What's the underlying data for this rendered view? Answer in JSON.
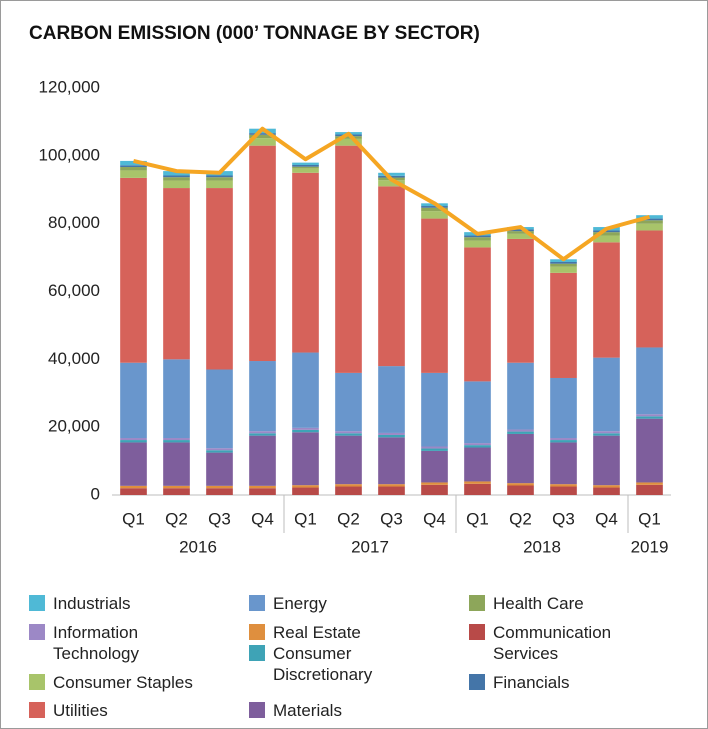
{
  "chart_data": {
    "type": "bar",
    "stacked": true,
    "title": "CARBON EMISSION (000’ TONNAGE BY SECTOR)",
    "groups": [
      {
        "label": "2016",
        "categories": [
          "Q1",
          "Q2",
          "Q3",
          "Q4"
        ]
      },
      {
        "label": "2017",
        "categories": [
          "Q1",
          "Q2",
          "Q3",
          "Q4"
        ]
      },
      {
        "label": "2018",
        "categories": [
          "Q1",
          "Q2",
          "Q3",
          "Q4"
        ]
      },
      {
        "label": "2019",
        "categories": [
          "Q1"
        ]
      }
    ],
    "ylim": [
      0,
      120000
    ],
    "yticks": [
      0,
      {
        "value": 20000,
        "label": "20,000"
      },
      {
        "value": 40000,
        "label": "40,000"
      },
      {
        "value": 60000,
        "label": "60,000"
      },
      {
        "value": 80000,
        "label": "80,000"
      },
      {
        "value": 100000,
        "label": "100,000"
      },
      {
        "value": 120000,
        "label": "120,000"
      }
    ],
    "series": [
      {
        "name": "Industrials",
        "color": "#4fb9d6",
        "values": [
          1300,
          1300,
          1300,
          1300,
          700,
          700,
          900,
          800,
          1000,
          700,
          800,
          1000,
          1000
        ]
      },
      {
        "name": "Energy",
        "color": "#6996cc",
        "values": [
          22200,
          23200,
          23200,
          20700,
          22200,
          17200,
          19700,
          21700,
          18200,
          19700,
          17700,
          21700,
          19700
        ]
      },
      {
        "name": "Health Care",
        "color": "#8da65a",
        "values": [
          1000,
          1000,
          1000,
          1000,
          500,
          800,
          800,
          1000,
          1000,
          800,
          900,
          1000,
          1000
        ]
      },
      {
        "name": "Information Technology",
        "color": "#9c88c6",
        "values": [
          600,
          600,
          600,
          600,
          600,
          600,
          600,
          600,
          600,
          600,
          600,
          600,
          600
        ]
      },
      {
        "name": "Real Estate",
        "color": "#df8f3e",
        "values": [
          700,
          700,
          700,
          700,
          700,
          700,
          700,
          700,
          700,
          700,
          700,
          700,
          700
        ]
      },
      {
        "name": "Communication Services",
        "color": "#b84a48",
        "values": [
          2000,
          2000,
          2000,
          2000,
          2200,
          2500,
          2500,
          3000,
          3300,
          2800,
          2500,
          2200,
          3000
        ]
      },
      {
        "name": "Consumer Staples",
        "color": "#a8c46a",
        "values": [
          2200,
          2200,
          2200,
          2200,
          1300,
          2000,
          1800,
          2200,
          2000,
          1500,
          1800,
          2000,
          2000
        ]
      },
      {
        "name": "Consumer Discretionary",
        "color": "#3ea3b6",
        "values": [
          700,
          700,
          700,
          700,
          700,
          700,
          700,
          700,
          700,
          700,
          700,
          700,
          700
        ]
      },
      {
        "name": "Financials",
        "color": "#4475a8",
        "values": [
          500,
          500,
          500,
          500,
          500,
          500,
          500,
          500,
          500,
          500,
          500,
          500,
          500
        ]
      },
      {
        "name": "Utilities",
        "color": "#d6625a",
        "values": [
          54500,
          50500,
          53500,
          63500,
          53000,
          67000,
          53000,
          45500,
          39500,
          36500,
          31000,
          34000,
          34500
        ]
      },
      {
        "name": "Materials",
        "color": "#7e5e9c",
        "values": [
          12800,
          12800,
          9800,
          14800,
          15600,
          14300,
          13800,
          9300,
          10000,
          14500,
          12300,
          14600,
          18800
        ]
      },
      {
        "type": "line",
        "color": "#f5a623",
        "values": [
          98500,
          95500,
          95000,
          108000,
          99000,
          106500,
          93000,
          86000,
          77000,
          79000,
          69500,
          78500,
          82000
        ]
      }
    ]
  }
}
